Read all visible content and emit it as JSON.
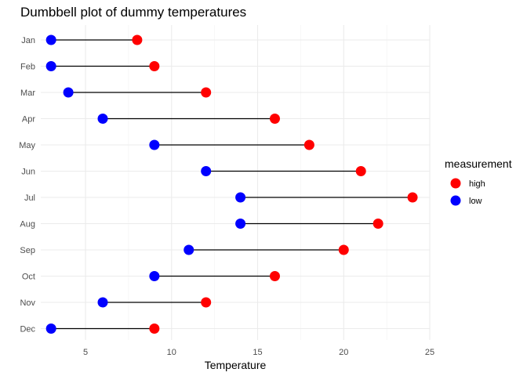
{
  "chart_data": {
    "type": "dumbbell",
    "title": "Dumbbell plot of dummy temperatures",
    "xlabel": "Temperature",
    "ylabel": "",
    "xlim": [
      2.4,
      25
    ],
    "x_ticks": [
      5,
      10,
      15,
      20,
      25
    ],
    "grid": true,
    "categories": [
      "Jan",
      "Feb",
      "Mar",
      "Apr",
      "May",
      "Jun",
      "Jul",
      "Aug",
      "Sep",
      "Oct",
      "Nov",
      "Dec"
    ],
    "series": [
      {
        "name": "high",
        "color": "#ff0000",
        "values": [
          8,
          9,
          12,
          16,
          18,
          21,
          24,
          22,
          20,
          16,
          12,
          9
        ]
      },
      {
        "name": "low",
        "color": "#0000ff",
        "values": [
          3,
          3,
          4,
          6,
          9,
          12,
          14,
          14,
          11,
          9,
          6,
          3
        ]
      }
    ],
    "legend": {
      "title": "measurement",
      "position": "right",
      "entries": [
        "high",
        "low"
      ]
    }
  }
}
